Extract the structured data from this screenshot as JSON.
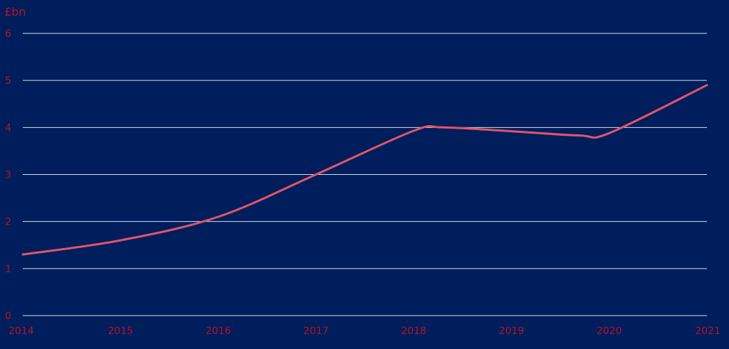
{
  "chart_data": {
    "type": "line",
    "title": "",
    "xlabel": "",
    "ylabel": "£bn",
    "x": [
      2014,
      2015,
      2016,
      2017,
      2018,
      2018.3,
      2019,
      2019.7,
      2020,
      2021
    ],
    "series": [
      {
        "values": [
          1.3,
          1.6,
          2.1,
          3.0,
          3.93,
          4.0,
          3.92,
          3.83,
          3.88,
          4.9
        ]
      }
    ],
    "xticks": [
      "2014",
      "2015",
      "2016",
      "2017",
      "2018",
      "2019",
      "2020",
      "2021"
    ],
    "yticks": [
      "0",
      "1",
      "2",
      "3",
      "4",
      "5",
      "6"
    ],
    "xlim": [
      2014,
      2021
    ],
    "ylim": [
      0,
      6
    ],
    "grid": true,
    "colors": {
      "background": "#001d5c",
      "line": "#e0556a",
      "gridline": "#d9deea",
      "tick_text": "#b3142a"
    }
  }
}
